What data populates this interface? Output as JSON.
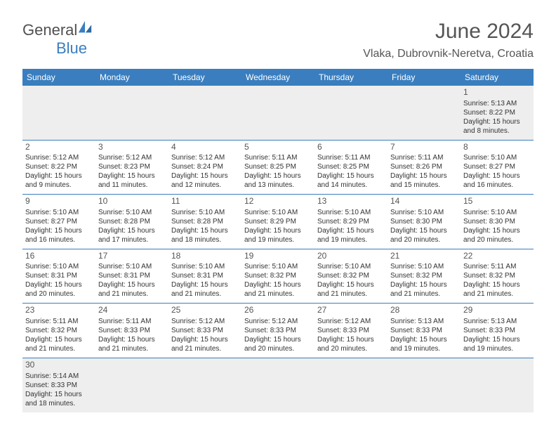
{
  "logo": {
    "text1": "General",
    "text2": "Blue"
  },
  "title": "June 2024",
  "location": "Vlaka, Dubrovnik-Neretva, Croatia",
  "colors": {
    "header_bg": "#3a7ebf",
    "header_text": "#ffffff",
    "cell_text": "#333333",
    "gray_row": "#eeeeee",
    "border": "#3a7ebf",
    "title_color": "#555555"
  },
  "days_of_week": [
    "Sunday",
    "Monday",
    "Tuesday",
    "Wednesday",
    "Thursday",
    "Friday",
    "Saturday"
  ],
  "weeks": [
    [
      null,
      null,
      null,
      null,
      null,
      null,
      {
        "n": "1",
        "sr": "Sunrise: 5:13 AM",
        "ss": "Sunset: 8:22 PM",
        "d1": "Daylight: 15 hours",
        "d2": "and 8 minutes."
      }
    ],
    [
      {
        "n": "2",
        "sr": "Sunrise: 5:12 AM",
        "ss": "Sunset: 8:22 PM",
        "d1": "Daylight: 15 hours",
        "d2": "and 9 minutes."
      },
      {
        "n": "3",
        "sr": "Sunrise: 5:12 AM",
        "ss": "Sunset: 8:23 PM",
        "d1": "Daylight: 15 hours",
        "d2": "and 11 minutes."
      },
      {
        "n": "4",
        "sr": "Sunrise: 5:12 AM",
        "ss": "Sunset: 8:24 PM",
        "d1": "Daylight: 15 hours",
        "d2": "and 12 minutes."
      },
      {
        "n": "5",
        "sr": "Sunrise: 5:11 AM",
        "ss": "Sunset: 8:25 PM",
        "d1": "Daylight: 15 hours",
        "d2": "and 13 minutes."
      },
      {
        "n": "6",
        "sr": "Sunrise: 5:11 AM",
        "ss": "Sunset: 8:25 PM",
        "d1": "Daylight: 15 hours",
        "d2": "and 14 minutes."
      },
      {
        "n": "7",
        "sr": "Sunrise: 5:11 AM",
        "ss": "Sunset: 8:26 PM",
        "d1": "Daylight: 15 hours",
        "d2": "and 15 minutes."
      },
      {
        "n": "8",
        "sr": "Sunrise: 5:10 AM",
        "ss": "Sunset: 8:27 PM",
        "d1": "Daylight: 15 hours",
        "d2": "and 16 minutes."
      }
    ],
    [
      {
        "n": "9",
        "sr": "Sunrise: 5:10 AM",
        "ss": "Sunset: 8:27 PM",
        "d1": "Daylight: 15 hours",
        "d2": "and 16 minutes."
      },
      {
        "n": "10",
        "sr": "Sunrise: 5:10 AM",
        "ss": "Sunset: 8:28 PM",
        "d1": "Daylight: 15 hours",
        "d2": "and 17 minutes."
      },
      {
        "n": "11",
        "sr": "Sunrise: 5:10 AM",
        "ss": "Sunset: 8:28 PM",
        "d1": "Daylight: 15 hours",
        "d2": "and 18 minutes."
      },
      {
        "n": "12",
        "sr": "Sunrise: 5:10 AM",
        "ss": "Sunset: 8:29 PM",
        "d1": "Daylight: 15 hours",
        "d2": "and 19 minutes."
      },
      {
        "n": "13",
        "sr": "Sunrise: 5:10 AM",
        "ss": "Sunset: 8:29 PM",
        "d1": "Daylight: 15 hours",
        "d2": "and 19 minutes."
      },
      {
        "n": "14",
        "sr": "Sunrise: 5:10 AM",
        "ss": "Sunset: 8:30 PM",
        "d1": "Daylight: 15 hours",
        "d2": "and 20 minutes."
      },
      {
        "n": "15",
        "sr": "Sunrise: 5:10 AM",
        "ss": "Sunset: 8:30 PM",
        "d1": "Daylight: 15 hours",
        "d2": "and 20 minutes."
      }
    ],
    [
      {
        "n": "16",
        "sr": "Sunrise: 5:10 AM",
        "ss": "Sunset: 8:31 PM",
        "d1": "Daylight: 15 hours",
        "d2": "and 20 minutes."
      },
      {
        "n": "17",
        "sr": "Sunrise: 5:10 AM",
        "ss": "Sunset: 8:31 PM",
        "d1": "Daylight: 15 hours",
        "d2": "and 21 minutes."
      },
      {
        "n": "18",
        "sr": "Sunrise: 5:10 AM",
        "ss": "Sunset: 8:31 PM",
        "d1": "Daylight: 15 hours",
        "d2": "and 21 minutes."
      },
      {
        "n": "19",
        "sr": "Sunrise: 5:10 AM",
        "ss": "Sunset: 8:32 PM",
        "d1": "Daylight: 15 hours",
        "d2": "and 21 minutes."
      },
      {
        "n": "20",
        "sr": "Sunrise: 5:10 AM",
        "ss": "Sunset: 8:32 PM",
        "d1": "Daylight: 15 hours",
        "d2": "and 21 minutes."
      },
      {
        "n": "21",
        "sr": "Sunrise: 5:10 AM",
        "ss": "Sunset: 8:32 PM",
        "d1": "Daylight: 15 hours",
        "d2": "and 21 minutes."
      },
      {
        "n": "22",
        "sr": "Sunrise: 5:11 AM",
        "ss": "Sunset: 8:32 PM",
        "d1": "Daylight: 15 hours",
        "d2": "and 21 minutes."
      }
    ],
    [
      {
        "n": "23",
        "sr": "Sunrise: 5:11 AM",
        "ss": "Sunset: 8:32 PM",
        "d1": "Daylight: 15 hours",
        "d2": "and 21 minutes."
      },
      {
        "n": "24",
        "sr": "Sunrise: 5:11 AM",
        "ss": "Sunset: 8:33 PM",
        "d1": "Daylight: 15 hours",
        "d2": "and 21 minutes."
      },
      {
        "n": "25",
        "sr": "Sunrise: 5:12 AM",
        "ss": "Sunset: 8:33 PM",
        "d1": "Daylight: 15 hours",
        "d2": "and 21 minutes."
      },
      {
        "n": "26",
        "sr": "Sunrise: 5:12 AM",
        "ss": "Sunset: 8:33 PM",
        "d1": "Daylight: 15 hours",
        "d2": "and 20 minutes."
      },
      {
        "n": "27",
        "sr": "Sunrise: 5:12 AM",
        "ss": "Sunset: 8:33 PM",
        "d1": "Daylight: 15 hours",
        "d2": "and 20 minutes."
      },
      {
        "n": "28",
        "sr": "Sunrise: 5:13 AM",
        "ss": "Sunset: 8:33 PM",
        "d1": "Daylight: 15 hours",
        "d2": "and 19 minutes."
      },
      {
        "n": "29",
        "sr": "Sunrise: 5:13 AM",
        "ss": "Sunset: 8:33 PM",
        "d1": "Daylight: 15 hours",
        "d2": "and 19 minutes."
      }
    ],
    [
      {
        "n": "30",
        "sr": "Sunrise: 5:14 AM",
        "ss": "Sunset: 8:33 PM",
        "d1": "Daylight: 15 hours",
        "d2": "and 18 minutes."
      },
      null,
      null,
      null,
      null,
      null,
      null
    ]
  ]
}
